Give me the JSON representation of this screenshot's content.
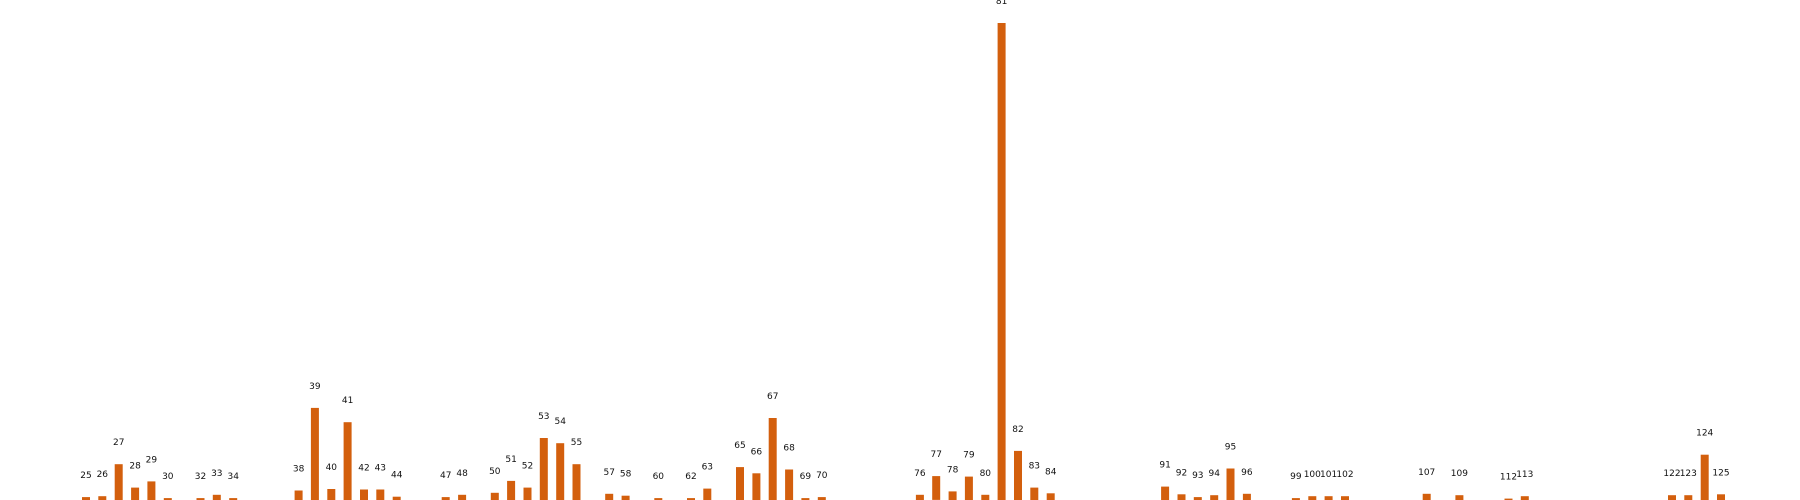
{
  "colors": {
    "bar": "#d35f0d",
    "background": "#ffffff",
    "label": "#111111"
  },
  "chart_data": {
    "type": "bar",
    "title": "",
    "xlabel": "",
    "ylabel": "",
    "axes_visible": false,
    "grid": false,
    "ylim": [
      0,
      100
    ],
    "categories": [
      "25",
      "26",
      "27",
      "28",
      "29",
      "30",
      "32",
      "33",
      "34",
      "38",
      "39",
      "40",
      "41",
      "42",
      "43",
      "44",
      "47",
      "48",
      "50",
      "51",
      "52",
      "53",
      "54",
      "55",
      "57",
      "58",
      "60",
      "62",
      "63",
      "65",
      "66",
      "67",
      "68",
      "69",
      "70",
      "76",
      "77",
      "78",
      "79",
      "80",
      "81",
      "82",
      "83",
      "84",
      "91",
      "92",
      "93",
      "94",
      "95",
      "96",
      "99",
      "100",
      "101",
      "102",
      "107",
      "109",
      "112",
      "113",
      "122",
      "123",
      "124",
      "125"
    ],
    "values": [
      0.6,
      0.8,
      7.5,
      2.6,
      3.9,
      0.4,
      0.4,
      1.1,
      0.4,
      2.0,
      19.3,
      2.3,
      16.3,
      2.2,
      2.2,
      0.7,
      0.6,
      1.1,
      1.5,
      4.0,
      2.6,
      13.0,
      11.9,
      7.5,
      1.3,
      0.9,
      0.4,
      0.4,
      2.4,
      6.9,
      5.6,
      17.2,
      6.4,
      0.4,
      0.6,
      1.1,
      5.0,
      1.8,
      4.9,
      1.1,
      100.0,
      10.3,
      2.6,
      1.4,
      2.8,
      1.2,
      0.6,
      1.0,
      6.6,
      1.3,
      0.4,
      0.8,
      0.8,
      0.8,
      1.3,
      1.0,
      0.3,
      0.8,
      1.0,
      1.0,
      9.5,
      1.2
    ]
  }
}
